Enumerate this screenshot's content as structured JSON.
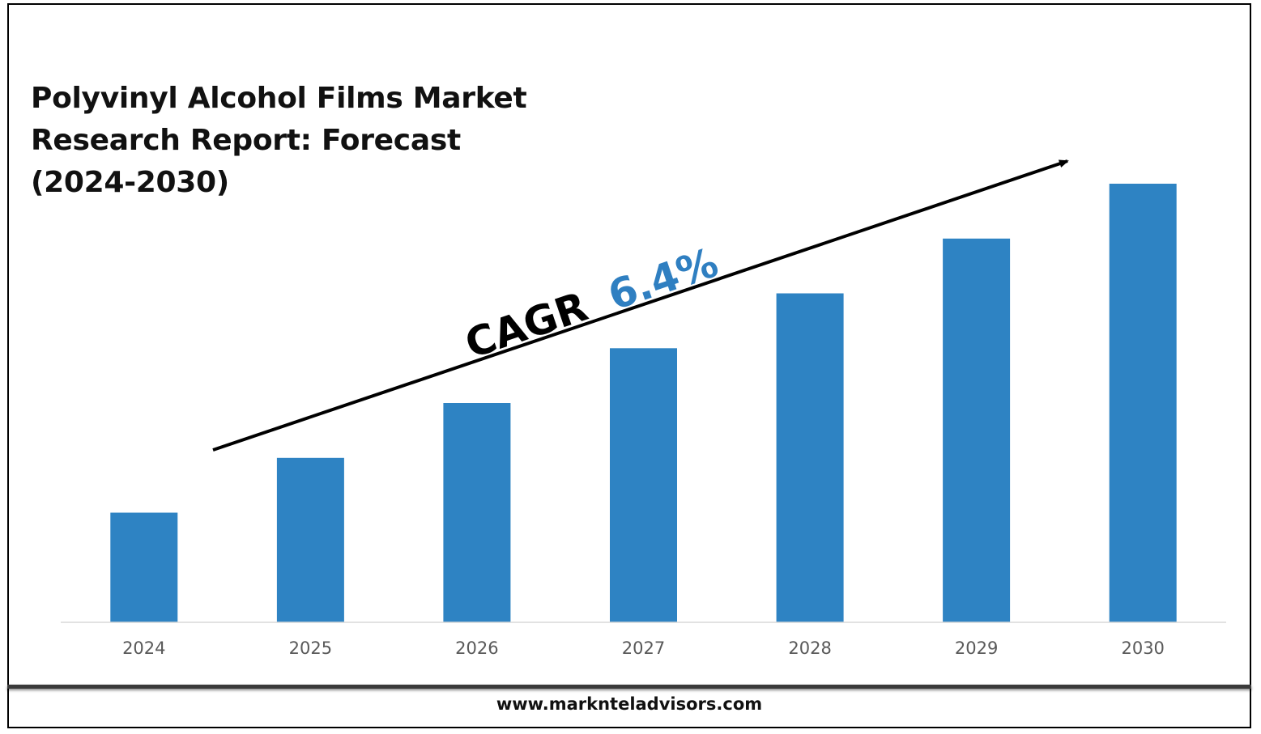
{
  "title_lines": [
    "Polyvinyl Alcohol Films Market",
    "Research Report: Forecast",
    "(2024-2030)"
  ],
  "cagr": {
    "prefix": "CAGR",
    "value": "6.4%",
    "prefix_color": "#000000",
    "value_color": "#2f7fc1"
  },
  "footer": {
    "url": "www.marknteladvisors.com"
  },
  "colors": {
    "bar": "#2e83c3",
    "axis": "#d9d9d9",
    "arrow": "#000000"
  },
  "chart_data": {
    "type": "bar",
    "categories": [
      "2024",
      "2025",
      "2026",
      "2027",
      "2028",
      "2029",
      "2030"
    ],
    "values": [
      1.0,
      1.5,
      2.0,
      2.5,
      3.0,
      3.5,
      4.0
    ],
    "title": "Polyvinyl Alcohol Films Market Research Report: Forecast (2024-2030)",
    "xlabel": "",
    "ylabel": "",
    "ylim": [
      0,
      4.0
    ],
    "grid": false,
    "legend": "none",
    "annotation": "CAGR 6.4%"
  }
}
